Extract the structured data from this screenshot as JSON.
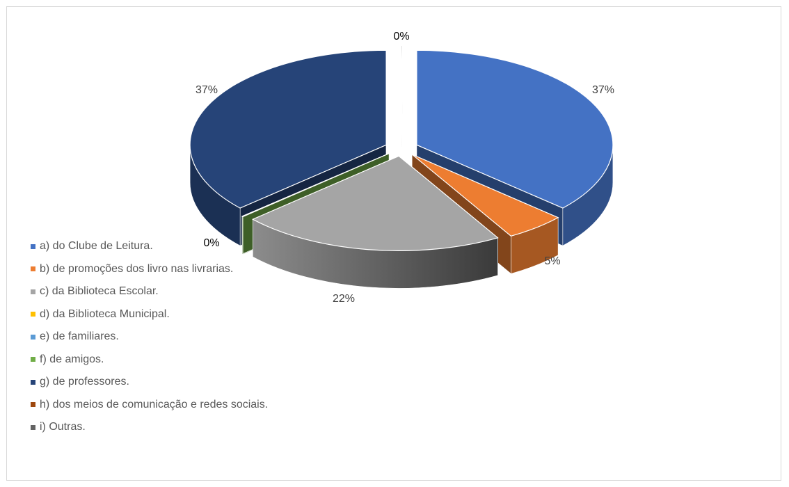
{
  "chart_data": {
    "type": "pie",
    "style": "3d-exploded",
    "title": "",
    "legend_position": "left-bottom",
    "categories": [
      "a) do Clube de Leitura.",
      "b) de promoções dos livro nas livrarias.",
      "c) da Biblioteca Escolar.",
      "d) da Biblioteca  Municipal.",
      "e) de familiares.",
      "f) de amigos.",
      "g) de professores.",
      "h) dos meios de comunicação e redes sociais.",
      "i) Outras."
    ],
    "values": [
      37,
      5,
      22,
      0,
      0,
      0,
      37,
      0,
      0
    ],
    "colors": [
      "#4472c4",
      "#ed7d31",
      "#a5a5a5",
      "#ffc000",
      "#5b9bd5",
      "#70ad47",
      "#264478",
      "#9e480e",
      "#636363"
    ],
    "data_labels": [
      {
        "slice": 0,
        "text": "37%"
      },
      {
        "slice": 1,
        "text": "5%"
      },
      {
        "slice": 2,
        "text": "22%"
      },
      {
        "slice": 5,
        "text": "0%"
      },
      {
        "slice": 6,
        "text": "37%"
      },
      {
        "slice": 8,
        "text": "0%"
      }
    ]
  }
}
